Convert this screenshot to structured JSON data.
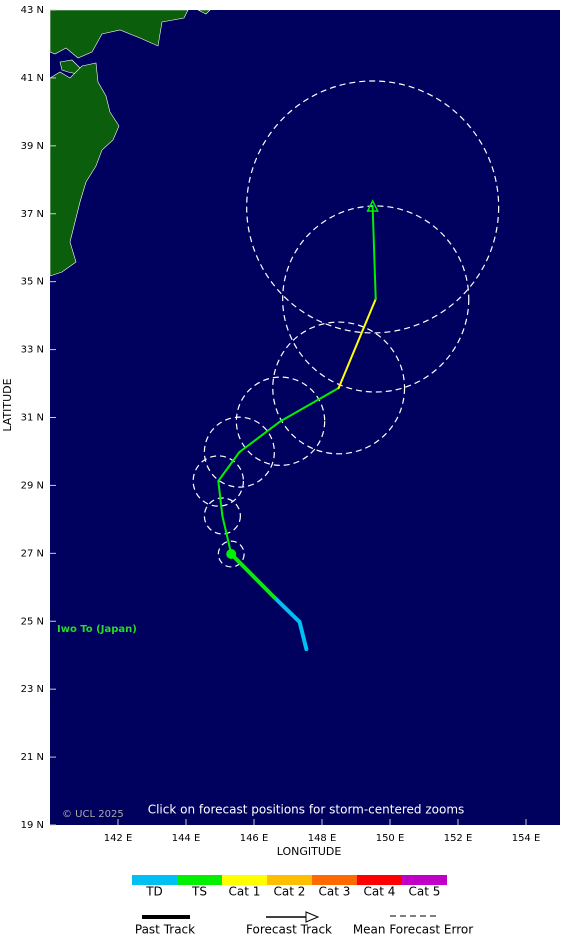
{
  "map": {
    "xlim": [
      140,
      155
    ],
    "ylim": [
      19,
      43
    ],
    "xticks": [
      {
        "value": 142,
        "label": "142 E"
      },
      {
        "value": 144,
        "label": "144 E"
      },
      {
        "value": 146,
        "label": "146 E"
      },
      {
        "value": 148,
        "label": "148 E"
      },
      {
        "value": 150,
        "label": "150 E"
      },
      {
        "value": 152,
        "label": "152 E"
      },
      {
        "value": 154,
        "label": "154 E"
      }
    ],
    "yticks": [
      {
        "value": 19,
        "label": "19 N"
      },
      {
        "value": 21,
        "label": "21 N"
      },
      {
        "value": 23,
        "label": "23 N"
      },
      {
        "value": 25,
        "label": "25 N"
      },
      {
        "value": 27,
        "label": "27 N"
      },
      {
        "value": 29,
        "label": "29 N"
      },
      {
        "value": 31,
        "label": "31 N"
      },
      {
        "value": 33,
        "label": "33 N"
      },
      {
        "value": 35,
        "label": "35 N"
      },
      {
        "value": 37,
        "label": "37 N"
      },
      {
        "value": 39,
        "label": "39 N"
      },
      {
        "value": 41,
        "label": "41 N"
      },
      {
        "value": 43,
        "label": "43 N"
      }
    ],
    "xlabel": "LONGITUDE",
    "ylabel": "LATITUDE",
    "past_track": [
      {
        "lon": 147.54,
        "lat": 24.18,
        "category": "TD"
      },
      {
        "lon": 147.34,
        "lat": 24.98,
        "category": "TD"
      },
      {
        "lon": 146.6,
        "lat": 25.7,
        "category": "TD"
      },
      {
        "lon": 145.33,
        "lat": 26.98,
        "category": "TS"
      }
    ],
    "forecast_track": [
      {
        "lon": 145.33,
        "lat": 26.98,
        "category": "TS",
        "error_radius": 0.38
      },
      {
        "lon": 145.07,
        "lat": 28.1,
        "category": "TS",
        "error_radius": 0.53
      },
      {
        "lon": 144.95,
        "lat": 29.13,
        "category": "TS",
        "error_radius": 0.74
      },
      {
        "lon": 145.57,
        "lat": 29.98,
        "category": "TS",
        "error_radius": 1.03
      },
      {
        "lon": 146.78,
        "lat": 30.89,
        "category": "TS",
        "error_radius": 1.3
      },
      {
        "lon": 148.49,
        "lat": 31.87,
        "category": "TS",
        "error_radius": 1.94
      },
      {
        "lon": 149.58,
        "lat": 34.49,
        "category": "Cat 1",
        "error_radius": 2.74
      },
      {
        "lon": 149.49,
        "lat": 37.2,
        "category": "TS",
        "error_radius": 3.71
      }
    ],
    "place": "Iwo To (Japan)",
    "credit": "© UCL 2025",
    "note": "Click on forecast positions for storm-centered zooms",
    "categories": [
      {
        "label": "TD",
        "color": "#00bff3"
      },
      {
        "label": "TS",
        "color": "#00f000"
      },
      {
        "label": "Cat 1",
        "color": "#ffff00"
      },
      {
        "label": "Cat 2",
        "color": "#ffbf00"
      },
      {
        "label": "Cat 3",
        "color": "#ff6a00"
      },
      {
        "label": "Cat 4",
        "color": "#ff0000"
      },
      {
        "label": "Cat 5",
        "color": "#c000c8"
      }
    ],
    "legend": {
      "past": "Past Track",
      "forecast": "Forecast Track",
      "error": "Mean Forecast Error"
    }
  }
}
